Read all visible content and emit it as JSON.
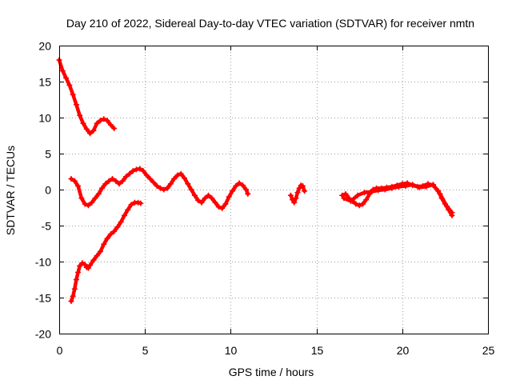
{
  "chart_data": {
    "type": "scatter",
    "title": "Day 210 of 2022, Sidereal Day-to-day VTEC variation (SDTVAR) for receiver nmtn",
    "xlabel": "GPS time / hours",
    "ylabel": "SDTVAR / TECUs",
    "xlim": [
      0,
      25
    ],
    "ylim": [
      -20,
      20
    ],
    "xticks": [
      0,
      5,
      10,
      15,
      20,
      25
    ],
    "yticks": [
      -20,
      -15,
      -10,
      -5,
      0,
      5,
      10,
      15,
      20
    ],
    "xtick_labels": [
      "0",
      "5",
      "10",
      "15",
      "20",
      "25"
    ],
    "ytick_labels": [
      "-20",
      "-15",
      "-10",
      "-5",
      "0",
      "5",
      "10",
      "15",
      "20"
    ],
    "grid": true,
    "marker": "+",
    "series_color": "#ff0000",
    "series": [
      {
        "name": "track-1",
        "x": [
          0.0,
          0.2,
          0.4,
          0.6,
          0.8,
          1.0,
          1.2,
          1.4,
          1.6,
          1.8,
          2.0,
          2.2,
          2.4,
          2.6,
          2.8,
          3.0,
          3.2
        ],
        "y": [
          18.0,
          16.5,
          15.5,
          14.5,
          13.2,
          11.8,
          10.3,
          9.2,
          8.4,
          7.8,
          8.2,
          9.2,
          9.6,
          9.8,
          9.6,
          9.0,
          8.5
        ]
      },
      {
        "name": "track-2",
        "x": [
          0.7,
          0.9,
          1.1,
          1.3,
          1.5,
          1.7,
          1.9,
          2.1,
          2.3,
          2.5,
          2.7,
          2.9,
          3.1,
          3.3,
          3.5,
          3.7,
          3.9,
          4.1,
          4.3,
          4.5,
          4.7,
          4.9,
          5.1,
          5.3,
          5.5,
          5.7,
          5.9,
          6.1,
          6.3,
          6.5,
          6.7,
          6.9,
          7.1,
          7.3,
          7.5,
          7.7,
          7.9,
          8.1,
          8.3,
          8.5,
          8.7,
          8.9,
          9.1,
          9.3,
          9.5,
          9.7,
          9.9,
          10.1,
          10.3,
          10.5,
          10.7,
          10.9,
          11.0
        ],
        "y": [
          1.5,
          1.2,
          0.5,
          -1.2,
          -2.0,
          -2.2,
          -1.8,
          -1.2,
          -0.6,
          0.2,
          0.8,
          1.2,
          1.5,
          1.2,
          0.8,
          1.2,
          1.8,
          2.2,
          2.6,
          2.8,
          2.9,
          2.6,
          2.0,
          1.5,
          1.0,
          0.5,
          0.2,
          0.0,
          0.2,
          0.8,
          1.5,
          2.0,
          2.2,
          1.6,
          0.8,
          0.0,
          -0.8,
          -1.5,
          -1.8,
          -1.2,
          -0.8,
          -1.2,
          -1.8,
          -2.4,
          -2.6,
          -2.0,
          -1.0,
          -0.2,
          0.5,
          0.9,
          0.6,
          0.0,
          -0.6
        ]
      },
      {
        "name": "track-3",
        "x": [
          0.7,
          0.8,
          0.9,
          1.0,
          1.1,
          1.2,
          1.35,
          1.5,
          1.6,
          1.7,
          1.8,
          2.0,
          2.2,
          2.4,
          2.6,
          2.8,
          3.0,
          3.2,
          3.4,
          3.6,
          3.8,
          4.0,
          4.2,
          4.4,
          4.6,
          4.75
        ],
        "y": [
          -15.5,
          -14.8,
          -13.8,
          -12.5,
          -11.5,
          -10.6,
          -10.2,
          -10.4,
          -10.8,
          -10.9,
          -10.5,
          -9.8,
          -9.2,
          -8.6,
          -7.6,
          -6.8,
          -6.2,
          -5.8,
          -5.2,
          -4.5,
          -3.6,
          -2.8,
          -2.1,
          -1.8,
          -1.8,
          -1.9
        ]
      },
      {
        "name": "track-4",
        "x": [
          13.5,
          13.6,
          13.7,
          13.8,
          13.9,
          14.0,
          14.1,
          14.2,
          14.3
        ],
        "y": [
          -0.8,
          -1.4,
          -1.8,
          -1.2,
          -0.4,
          0.2,
          0.6,
          0.5,
          -0.2
        ]
      },
      {
        "name": "track-5",
        "x": [
          16.5,
          16.7,
          16.9,
          17.1,
          17.3,
          17.5,
          17.7,
          17.9,
          18.1,
          18.3,
          18.5,
          18.8,
          19.1,
          19.4,
          19.7,
          20.0,
          20.3,
          20.6,
          20.9,
          21.2,
          21.5,
          21.8,
          22.1,
          22.3,
          22.5,
          22.7,
          22.9
        ],
        "y": [
          -0.8,
          -0.6,
          -1.2,
          -1.6,
          -2.0,
          -2.2,
          -2.0,
          -1.4,
          -0.6,
          0.0,
          0.2,
          0.2,
          0.3,
          0.4,
          0.6,
          0.8,
          0.9,
          0.6,
          0.4,
          0.5,
          0.8,
          0.6,
          -0.2,
          -1.2,
          -2.0,
          -2.8,
          -3.6
        ]
      },
      {
        "name": "track-6",
        "x": [
          16.6,
          17.0,
          17.4,
          17.8,
          18.2,
          18.6,
          19.0,
          19.4,
          19.8,
          20.2,
          20.6,
          21.0,
          21.4,
          21.8,
          22.2,
          22.6,
          22.9
        ],
        "y": [
          -1.2,
          -1.6,
          -0.8,
          -0.4,
          -0.3,
          -0.1,
          0.0,
          0.2,
          0.4,
          0.5,
          0.7,
          0.3,
          0.4,
          0.7,
          -0.6,
          -2.3,
          -3.2
        ]
      }
    ]
  }
}
